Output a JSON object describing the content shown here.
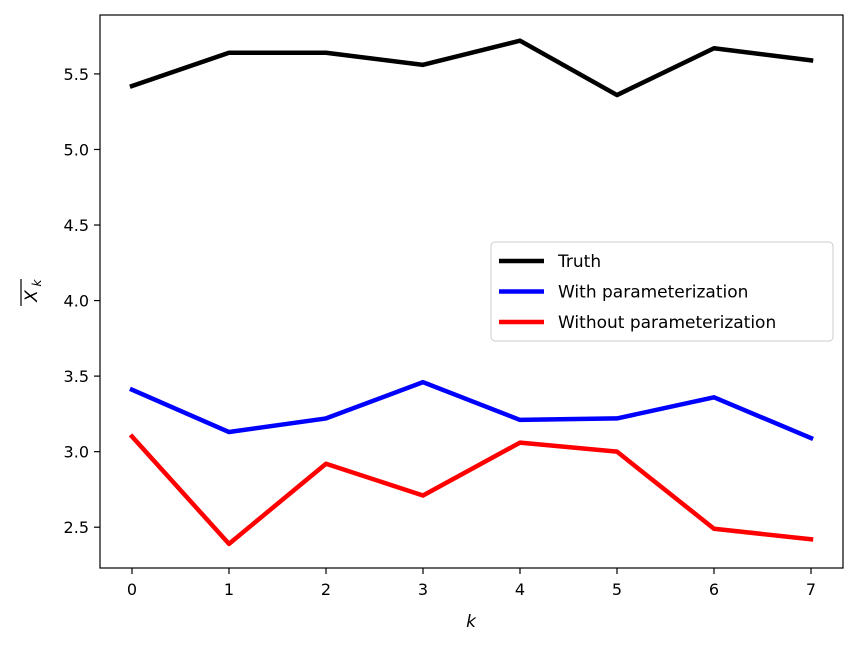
{
  "chart_data": {
    "type": "line",
    "title": "",
    "xlabel": "k",
    "ylabel": "X̄_k",
    "x": [
      0,
      1,
      2,
      3,
      4,
      5,
      6,
      7
    ],
    "xlim": [
      -0.33,
      7.33
    ],
    "ylim": [
      2.23,
      5.89
    ],
    "xticks": [
      0,
      1,
      2,
      3,
      4,
      5,
      6,
      7
    ],
    "yticks": [
      2.5,
      3.0,
      3.5,
      4.0,
      4.5,
      5.0,
      5.5
    ],
    "ytick_labels": [
      "2.5",
      "3.0",
      "3.5",
      "4.0",
      "4.5",
      "5.0",
      "5.5"
    ],
    "grid": false,
    "legend_position": "center-right",
    "series": [
      {
        "name": "Truth",
        "color": "#000000",
        "values": [
          5.42,
          5.64,
          5.64,
          5.56,
          5.72,
          5.36,
          5.67,
          5.59
        ]
      },
      {
        "name": "With parameterization",
        "color": "#0000ff",
        "values": [
          3.41,
          3.13,
          3.22,
          3.46,
          3.21,
          3.22,
          3.36,
          3.09
        ]
      },
      {
        "name": "Without parameterization",
        "color": "#ff0000",
        "values": [
          3.1,
          2.39,
          2.92,
          2.71,
          3.06,
          3.0,
          2.49,
          2.42
        ]
      }
    ]
  }
}
